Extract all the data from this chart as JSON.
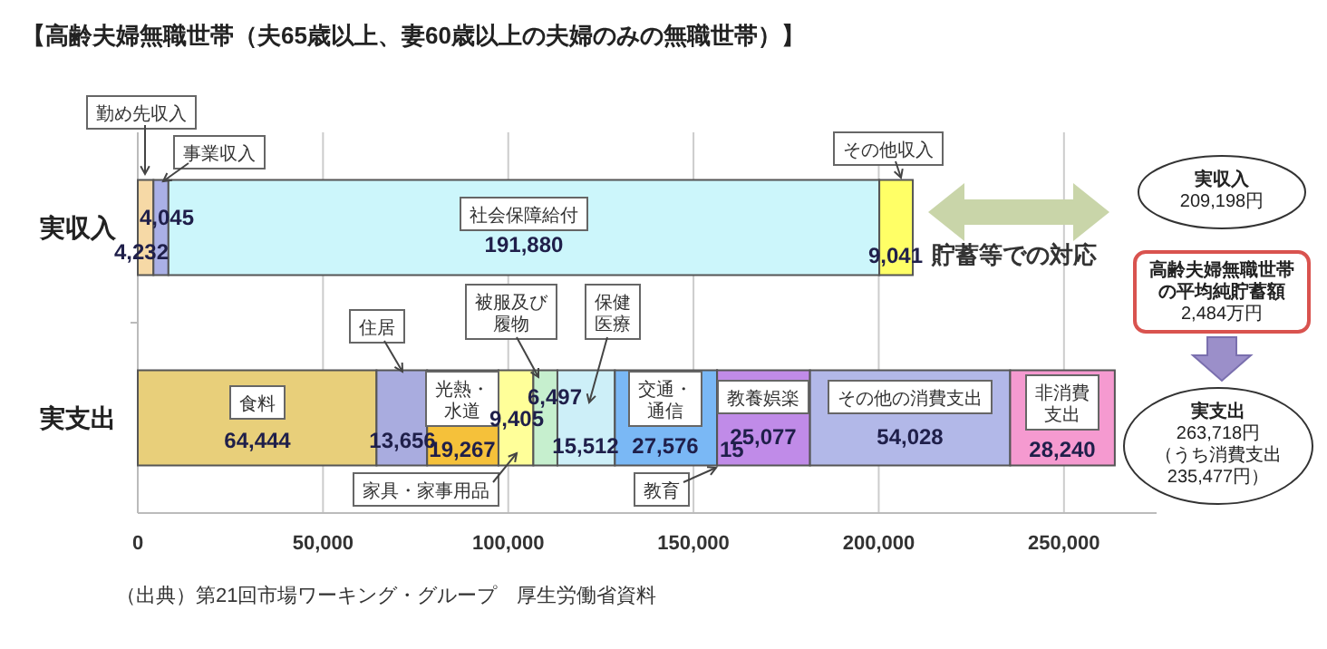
{
  "chart_data": {
    "type": "bar",
    "orientation": "horizontal",
    "stacked": true,
    "title": "【高齢夫婦無職世帯（夫65歳以上、妻60歳以上の夫婦のみの無職世帯）】",
    "categories": [
      "実収入",
      "実支出"
    ],
    "series": [
      {
        "name": "勤め先収入",
        "color": "#f6d9a6",
        "values": [
          4232,
          null
        ],
        "value_labels": [
          "4,232",
          null
        ]
      },
      {
        "name": "事業収入",
        "color": "#aab0e6",
        "values": [
          4045,
          null
        ],
        "value_labels": [
          "4,045",
          null
        ]
      },
      {
        "name": "社会保障給付",
        "color": "#ccf6fb",
        "values": [
          191880,
          null
        ],
        "value_labels": [
          "191,880",
          null
        ]
      },
      {
        "name": "その他収入",
        "color": "#ffff66",
        "values": [
          9041,
          null
        ],
        "value_labels": [
          "9,041",
          null
        ]
      },
      {
        "name": "食料",
        "color": "#e8cf7a",
        "values": [
          null,
          64444
        ],
        "value_labels": [
          null,
          "64,444"
        ]
      },
      {
        "name": "住居",
        "color": "#a9acdf",
        "values": [
          null,
          13656
        ],
        "value_labels": [
          null,
          "13,656"
        ]
      },
      {
        "name": "光熱・水道",
        "color": "#f5c13a",
        "values": [
          null,
          19267
        ],
        "value_labels": [
          null,
          "19,267"
        ]
      },
      {
        "name": "家具・家事用品",
        "color": "#ffff99",
        "values": [
          null,
          9405
        ],
        "value_labels": [
          null,
          "9,405"
        ]
      },
      {
        "name": "被服及び履物",
        "color": "#c6efce",
        "values": [
          null,
          6497
        ],
        "value_labels": [
          null,
          "6,497"
        ]
      },
      {
        "name": "保健医療",
        "color": "#cdeff8",
        "values": [
          null,
          15512
        ],
        "value_labels": [
          null,
          "15,512"
        ]
      },
      {
        "name": "交通・通信",
        "color": "#7ab8f5",
        "values": [
          null,
          27576
        ],
        "value_labels": [
          null,
          "27,576"
        ]
      },
      {
        "name": "教育",
        "color": "#333366",
        "values": [
          null,
          15
        ],
        "value_labels": [
          null,
          "15"
        ]
      },
      {
        "name": "教養娯楽",
        "color": "#c08be8",
        "values": [
          null,
          25077
        ],
        "value_labels": [
          null,
          "25,077"
        ]
      },
      {
        "name": "その他の消費支出",
        "color": "#b2b8e8",
        "values": [
          null,
          54028
        ],
        "value_labels": [
          null,
          "54,028"
        ]
      },
      {
        "name": "非消費支出",
        "color": "#f59ad0",
        "values": [
          null,
          28240
        ],
        "value_labels": [
          null,
          "28,240"
        ]
      }
    ],
    "xlim": [
      0,
      275000
    ],
    "xticks": [
      0,
      {
        "value": 50000,
        "label": "50,000"
      },
      {
        "value": 100000,
        "label": "100,000"
      },
      {
        "value": 150000,
        "label": "150,000"
      },
      {
        "value": 200000,
        "label": "200,000"
      },
      {
        "value": 250000,
        "label": "250,000"
      }
    ],
    "grid": "x",
    "annotations": [
      "貯蓄等での対応",
      "実収入",
      "209,198円",
      "高齢夫婦無職世帯の平均純貯蓄額",
      "2,484万円",
      "実支出",
      "263,718円",
      "（うち消費支出235,477円）",
      "（出典）第21回市場ワーキング・グループ　厚生労働省資料"
    ]
  }
}
